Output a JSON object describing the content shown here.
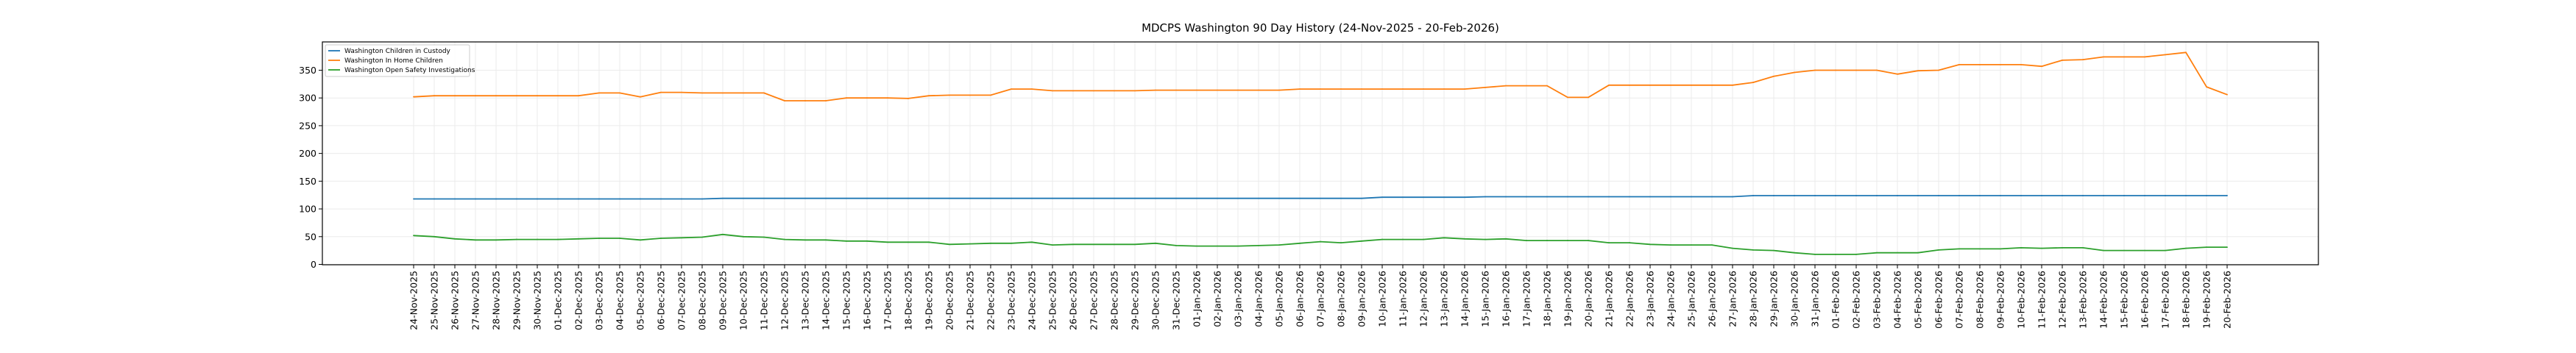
{
  "chart_data": {
    "type": "line",
    "title": "MDCPS Washington 90 Day History (24-Nov-2025 - 20-Feb-2026)",
    "xlabel": "",
    "ylabel": "",
    "ylim": [
      0,
      401
    ],
    "yticks": [
      0,
      50,
      100,
      150,
      200,
      250,
      300,
      350
    ],
    "grid": true,
    "legend_position": "top-left",
    "x": [
      "24-Nov-2025",
      "25-Nov-2025",
      "26-Nov-2025",
      "27-Nov-2025",
      "28-Nov-2025",
      "29-Nov-2025",
      "30-Nov-2025",
      "01-Dec-2025",
      "02-Dec-2025",
      "03-Dec-2025",
      "04-Dec-2025",
      "05-Dec-2025",
      "06-Dec-2025",
      "07-Dec-2025",
      "08-Dec-2025",
      "09-Dec-2025",
      "10-Dec-2025",
      "11-Dec-2025",
      "12-Dec-2025",
      "13-Dec-2025",
      "14-Dec-2025",
      "15-Dec-2025",
      "16-Dec-2025",
      "17-Dec-2025",
      "18-Dec-2025",
      "19-Dec-2025",
      "20-Dec-2025",
      "21-Dec-2025",
      "22-Dec-2025",
      "23-Dec-2025",
      "24-Dec-2025",
      "25-Dec-2025",
      "26-Dec-2025",
      "27-Dec-2025",
      "28-Dec-2025",
      "29-Dec-2025",
      "30-Dec-2025",
      "31-Dec-2025",
      "01-Jan-2026",
      "02-Jan-2026",
      "03-Jan-2026",
      "04-Jan-2026",
      "05-Jan-2026",
      "06-Jan-2026",
      "07-Jan-2026",
      "08-Jan-2026",
      "09-Jan-2026",
      "10-Jan-2026",
      "11-Jan-2026",
      "12-Jan-2026",
      "13-Jan-2026",
      "14-Jan-2026",
      "15-Jan-2026",
      "16-Jan-2026",
      "17-Jan-2026",
      "18-Jan-2026",
      "19-Jan-2026",
      "20-Jan-2026",
      "21-Jan-2026",
      "22-Jan-2026",
      "23-Jan-2026",
      "24-Jan-2026",
      "25-Jan-2026",
      "26-Jan-2026",
      "27-Jan-2026",
      "28-Jan-2026",
      "29-Jan-2026",
      "30-Jan-2026",
      "31-Jan-2026",
      "01-Feb-2026",
      "02-Feb-2026",
      "03-Feb-2026",
      "04-Feb-2026",
      "05-Feb-2026",
      "06-Feb-2026",
      "07-Feb-2026",
      "08-Feb-2026",
      "09-Feb-2026",
      "10-Feb-2026",
      "11-Feb-2026",
      "12-Feb-2026",
      "13-Feb-2026",
      "14-Feb-2026",
      "15-Feb-2026",
      "16-Feb-2026",
      "17-Feb-2026",
      "18-Feb-2026",
      "19-Feb-2026",
      "20-Feb-2026"
    ],
    "series": [
      {
        "name": "Washington Children in Custody",
        "color": "#1f77b4",
        "values": [
          118,
          118,
          118,
          118,
          118,
          118,
          118,
          118,
          118,
          118,
          118,
          118,
          118,
          118,
          118,
          119,
          119,
          119,
          119,
          119,
          119,
          119,
          119,
          119,
          119,
          119,
          119,
          119,
          119,
          119,
          119,
          119,
          119,
          119,
          119,
          119,
          119,
          119,
          119,
          119,
          119,
          119,
          119,
          119,
          119,
          119,
          119,
          121,
          121,
          121,
          121,
          121,
          122,
          122,
          122,
          122,
          122,
          122,
          122,
          122,
          122,
          122,
          122,
          122,
          122,
          124,
          124,
          124,
          124,
          124,
          124,
          124,
          124,
          124,
          124,
          124,
          124,
          124,
          124,
          124,
          124,
          124,
          124,
          124,
          124,
          124,
          124,
          124,
          124
        ]
      },
      {
        "name": "Washington In Home Children",
        "color": "#ff7f0e",
        "values": [
          302,
          304,
          304,
          304,
          304,
          304,
          304,
          304,
          304,
          309,
          309,
          302,
          310,
          310,
          309,
          309,
          309,
          309,
          295,
          295,
          295,
          300,
          300,
          300,
          299,
          304,
          305,
          305,
          305,
          316,
          316,
          313,
          313,
          313,
          313,
          313,
          314,
          314,
          314,
          314,
          314,
          314,
          314,
          316,
          316,
          316,
          316,
          316,
          316,
          316,
          316,
          316,
          319,
          322,
          322,
          322,
          301,
          301,
          323,
          323,
          323,
          323,
          323,
          323,
          323,
          328,
          339,
          346,
          350,
          350,
          350,
          350,
          343,
          349,
          350,
          360,
          360,
          360,
          360,
          357,
          368,
          369,
          374,
          374,
          374,
          378,
          382,
          320,
          306
        ]
      },
      {
        "name": "Washington Open Safety Investigations",
        "color": "#2ca02c",
        "values": [
          52,
          50,
          46,
          44,
          44,
          45,
          45,
          45,
          46,
          47,
          47,
          44,
          47,
          48,
          49,
          54,
          50,
          49,
          45,
          44,
          44,
          42,
          42,
          40,
          40,
          40,
          36,
          37,
          38,
          38,
          40,
          35,
          36,
          36,
          36,
          36,
          38,
          34,
          33,
          33,
          33,
          34,
          35,
          38,
          41,
          39,
          42,
          45,
          45,
          45,
          48,
          46,
          45,
          46,
          43,
          43,
          43,
          43,
          39,
          39,
          36,
          35,
          35,
          35,
          29,
          26,
          25,
          21,
          18,
          18,
          18,
          21,
          21,
          21,
          26,
          28,
          28,
          28,
          30,
          29,
          30,
          30,
          25,
          25,
          25,
          25,
          29,
          31,
          31
        ]
      }
    ]
  }
}
